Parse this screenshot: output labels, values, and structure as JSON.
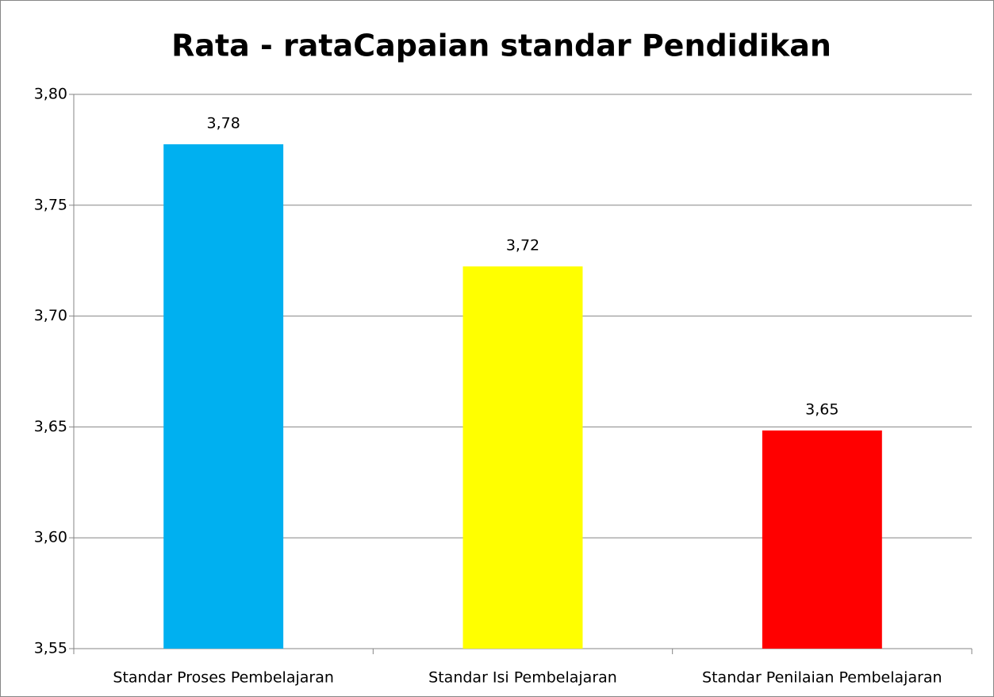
{
  "chart_data": {
    "type": "bar",
    "title": "Rata - rataCapaian standar Pendidikan",
    "categories": [
      "Standar Proses Pembelajaran",
      "Standar Isi Pembelajaran",
      "Standar Penilaian Pembelajaran"
    ],
    "values": [
      3.7775,
      3.7224,
      3.6484
    ],
    "value_labels": [
      "3,78",
      "3,72",
      "3,65"
    ],
    "colors": [
      "#00b0f0",
      "#ffff00",
      "#ff0000"
    ],
    "ylim": [
      3.55,
      3.8
    ],
    "yticks": [
      {
        "value": 3.55,
        "label": "3,55"
      },
      {
        "value": 3.6,
        "label": "3,60"
      },
      {
        "value": 3.65,
        "label": "3,65"
      },
      {
        "value": 3.7,
        "label": "3,70"
      },
      {
        "value": 3.75,
        "label": "3,75"
      },
      {
        "value": 3.8,
        "label": "3,80"
      }
    ],
    "grid": true
  }
}
